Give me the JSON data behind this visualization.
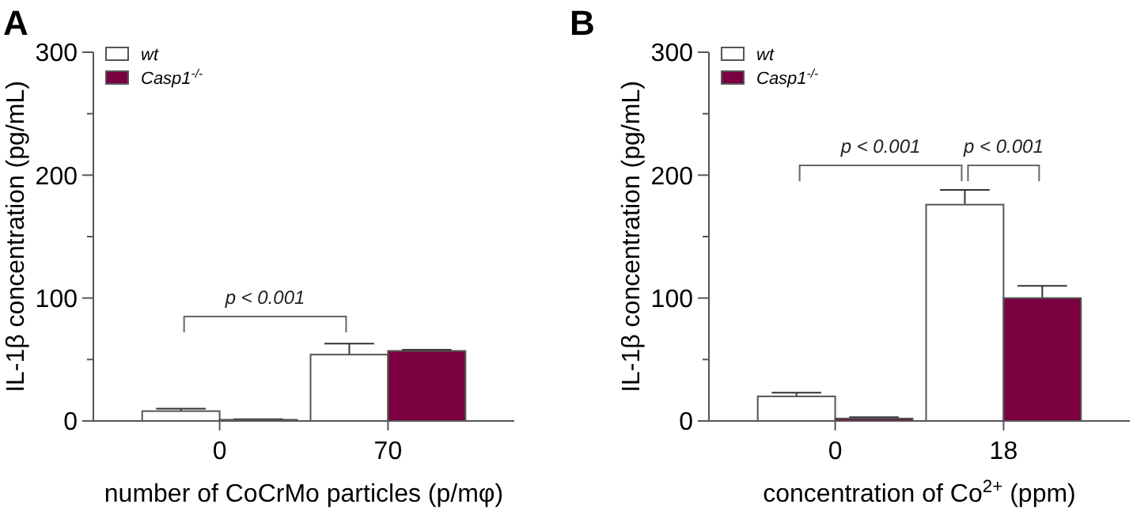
{
  "chart_data": [
    {
      "type": "bar",
      "title": "A",
      "xlabel": "number of CoCrMo particles (p/mφ)",
      "ylabel": "IL-1β concentration (pg/mL)",
      "categories": [
        "0",
        "70"
      ],
      "series": [
        {
          "name": "wt",
          "color": "#ffffff",
          "values": [
            8,
            54
          ],
          "errors": [
            2,
            9
          ]
        },
        {
          "name": "Casp1$^{-/-}$",
          "color": "#7a0040",
          "values": [
            1,
            57
          ],
          "errors": [
            0.5,
            1
          ]
        }
      ],
      "ylim": [
        0,
        300
      ],
      "yticks": [
        0,
        {
          "value": 50,
          "label": null
        },
        100,
        {
          "value": 150,
          "label": null
        },
        200,
        {
          "value": 250,
          "label": null
        },
        300
      ],
      "legend": "top left",
      "grid": false,
      "annotations": [
        "p < 0.001"
      ]
    },
    {
      "type": "bar",
      "title": "B",
      "xlabel": "concentration of Co$^{2+}$ (ppm)",
      "ylabel": "IL-1β concentration (pg/mL)",
      "categories": [
        "0",
        "18"
      ],
      "series": [
        {
          "name": "wt",
          "color": "#ffffff",
          "values": [
            20,
            176
          ],
          "errors": [
            3,
            12
          ]
        },
        {
          "name": "Casp1$^{-/-}$",
          "color": "#7a0040",
          "values": [
            2,
            100
          ],
          "errors": [
            1,
            10
          ]
        }
      ],
      "ylim": [
        0,
        300
      ],
      "yticks": [
        0,
        {
          "value": 50,
          "label": null
        },
        100,
        {
          "value": 150,
          "label": null
        },
        200,
        {
          "value": 250,
          "label": null
        },
        300
      ],
      "legend": "top left",
      "grid": false,
      "annotations": [
        "p < 0.001",
        "p < 0.001"
      ]
    }
  ]
}
